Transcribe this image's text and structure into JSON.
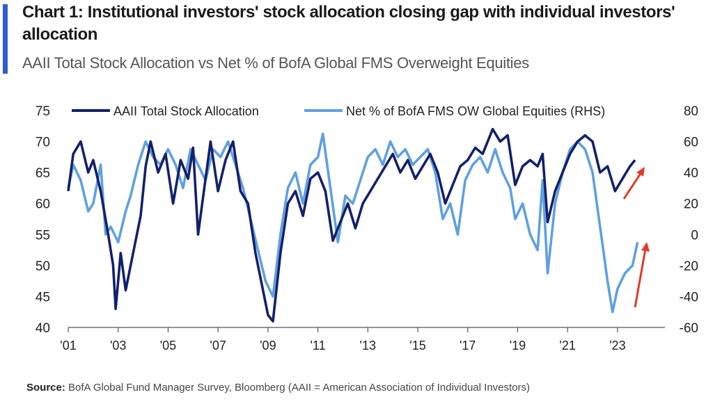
{
  "header": {
    "title": "Chart 1: Institutional investors' stock allocation closing gap with individual investors' allocation",
    "subtitle": "AAII Total Stock Allocation vs Net % of BofA Global FMS Overweight Equities"
  },
  "footer": {
    "source_label": "Source:",
    "source_text": "BofA Global Fund Manager Survey, Bloomberg (AAII = American Association of Individual Investors)"
  },
  "colors": {
    "accent": "#2f5bd6",
    "aaii": "#14206b",
    "fms": "#5fa0e0",
    "arrow": "#e23a2a"
  },
  "chart_data": {
    "type": "line",
    "x_range": [
      2001,
      2024.9
    ],
    "x_tick_labels": [
      "'01",
      "'03",
      "'05",
      "'07",
      "'09",
      "'11",
      "'13",
      "'15",
      "'17",
      "'19",
      "'21",
      "'23"
    ],
    "x_tick_values": [
      2001,
      2003,
      2005,
      2007,
      2009,
      2011,
      2013,
      2015,
      2017,
      2019,
      2021,
      2023
    ],
    "y_left": {
      "range": [
        40,
        75
      ],
      "ticks": [
        40,
        45,
        50,
        55,
        60,
        65,
        70,
        75
      ]
    },
    "y_right": {
      "range": [
        -60,
        80
      ],
      "ticks": [
        -60,
        -40,
        -20,
        0,
        20,
        40,
        60,
        80
      ]
    },
    "legend_position": "top",
    "grid": false,
    "series": [
      {
        "name": "AAII Total Stock Allocation",
        "axis": "left",
        "points": [
          [
            2001.0,
            62
          ],
          [
            2001.2,
            68
          ],
          [
            2001.5,
            70
          ],
          [
            2001.8,
            65
          ],
          [
            2002.0,
            67
          ],
          [
            2002.3,
            62
          ],
          [
            2002.6,
            55
          ],
          [
            2002.8,
            50
          ],
          [
            2002.9,
            43
          ],
          [
            2003.1,
            52
          ],
          [
            2003.3,
            46
          ],
          [
            2003.6,
            52
          ],
          [
            2003.9,
            58
          ],
          [
            2004.1,
            66
          ],
          [
            2004.3,
            70
          ],
          [
            2004.6,
            65
          ],
          [
            2004.9,
            68
          ],
          [
            2005.2,
            60
          ],
          [
            2005.5,
            67
          ],
          [
            2005.8,
            64
          ],
          [
            2006.0,
            69
          ],
          [
            2006.2,
            55
          ],
          [
            2006.5,
            64
          ],
          [
            2006.7,
            70
          ],
          [
            2007.0,
            62
          ],
          [
            2007.3,
            67
          ],
          [
            2007.6,
            70
          ],
          [
            2007.9,
            62
          ],
          [
            2008.2,
            60
          ],
          [
            2008.5,
            52
          ],
          [
            2008.8,
            46
          ],
          [
            2009.0,
            42
          ],
          [
            2009.2,
            41
          ],
          [
            2009.5,
            52
          ],
          [
            2009.8,
            60
          ],
          [
            2010.1,
            62
          ],
          [
            2010.4,
            58
          ],
          [
            2010.7,
            64
          ],
          [
            2011.0,
            65
          ],
          [
            2011.3,
            62
          ],
          [
            2011.6,
            54
          ],
          [
            2011.9,
            57
          ],
          [
            2012.2,
            60
          ],
          [
            2012.5,
            56
          ],
          [
            2012.8,
            60
          ],
          [
            2013.1,
            62
          ],
          [
            2013.4,
            64
          ],
          [
            2013.7,
            66
          ],
          [
            2014.0,
            68
          ],
          [
            2014.3,
            65
          ],
          [
            2014.6,
            67
          ],
          [
            2014.9,
            64
          ],
          [
            2015.2,
            66
          ],
          [
            2015.5,
            68
          ],
          [
            2015.8,
            65
          ],
          [
            2016.1,
            60
          ],
          [
            2016.4,
            63
          ],
          [
            2016.7,
            66
          ],
          [
            2017.0,
            67
          ],
          [
            2017.3,
            69
          ],
          [
            2017.6,
            68
          ],
          [
            2018.0,
            72
          ],
          [
            2018.3,
            70
          ],
          [
            2018.6,
            71
          ],
          [
            2018.9,
            63
          ],
          [
            2019.2,
            66
          ],
          [
            2019.5,
            67
          ],
          [
            2019.8,
            66
          ],
          [
            2020.0,
            68
          ],
          [
            2020.2,
            57
          ],
          [
            2020.5,
            62
          ],
          [
            2020.8,
            65
          ],
          [
            2021.1,
            68
          ],
          [
            2021.4,
            70
          ],
          [
            2021.7,
            71
          ],
          [
            2022.0,
            70
          ],
          [
            2022.3,
            65
          ],
          [
            2022.6,
            66
          ],
          [
            2022.9,
            62
          ],
          [
            2023.2,
            64
          ],
          [
            2023.5,
            66
          ],
          [
            2023.7,
            67
          ]
        ]
      },
      {
        "name": "Net % of BofA FMS OW Global Equities (RHS)",
        "axis": "right",
        "points": [
          [
            2001.0,
            30
          ],
          [
            2001.2,
            45
          ],
          [
            2001.5,
            35
          ],
          [
            2001.8,
            15
          ],
          [
            2002.0,
            20
          ],
          [
            2002.3,
            45
          ],
          [
            2002.5,
            0
          ],
          [
            2002.7,
            5
          ],
          [
            2003.0,
            -5
          ],
          [
            2003.3,
            15
          ],
          [
            2003.5,
            25
          ],
          [
            2003.8,
            45
          ],
          [
            2004.1,
            60
          ],
          [
            2004.4,
            50
          ],
          [
            2004.7,
            45
          ],
          [
            2005.0,
            55
          ],
          [
            2005.3,
            45
          ],
          [
            2005.6,
            30
          ],
          [
            2005.9,
            55
          ],
          [
            2006.2,
            45
          ],
          [
            2006.5,
            35
          ],
          [
            2006.8,
            55
          ],
          [
            2007.1,
            50
          ],
          [
            2007.4,
            60
          ],
          [
            2007.7,
            45
          ],
          [
            2008.0,
            30
          ],
          [
            2008.3,
            10
          ],
          [
            2008.6,
            -10
          ],
          [
            2008.9,
            -30
          ],
          [
            2009.2,
            -40
          ],
          [
            2009.5,
            0
          ],
          [
            2009.8,
            30
          ],
          [
            2010.1,
            40
          ],
          [
            2010.4,
            20
          ],
          [
            2010.7,
            45
          ],
          [
            2011.0,
            50
          ],
          [
            2011.2,
            65
          ],
          [
            2011.5,
            30
          ],
          [
            2011.8,
            -5
          ],
          [
            2012.1,
            25
          ],
          [
            2012.4,
            20
          ],
          [
            2012.7,
            35
          ],
          [
            2013.0,
            50
          ],
          [
            2013.3,
            55
          ],
          [
            2013.6,
            45
          ],
          [
            2013.9,
            60
          ],
          [
            2014.2,
            50
          ],
          [
            2014.5,
            55
          ],
          [
            2014.8,
            45
          ],
          [
            2015.1,
            50
          ],
          [
            2015.4,
            55
          ],
          [
            2015.7,
            40
          ],
          [
            2016.0,
            10
          ],
          [
            2016.3,
            20
          ],
          [
            2016.6,
            0
          ],
          [
            2016.9,
            35
          ],
          [
            2017.2,
            45
          ],
          [
            2017.5,
            50
          ],
          [
            2017.8,
            40
          ],
          [
            2018.1,
            55
          ],
          [
            2018.4,
            40
          ],
          [
            2018.7,
            30
          ],
          [
            2018.9,
            10
          ],
          [
            2019.2,
            20
          ],
          [
            2019.5,
            0
          ],
          [
            2019.8,
            -10
          ],
          [
            2020.0,
            35
          ],
          [
            2020.2,
            -25
          ],
          [
            2020.5,
            20
          ],
          [
            2020.8,
            40
          ],
          [
            2021.1,
            55
          ],
          [
            2021.4,
            60
          ],
          [
            2021.7,
            55
          ],
          [
            2022.0,
            40
          ],
          [
            2022.3,
            5
          ],
          [
            2022.6,
            -30
          ],
          [
            2022.8,
            -50
          ],
          [
            2023.0,
            -35
          ],
          [
            2023.3,
            -25
          ],
          [
            2023.6,
            -20
          ],
          [
            2023.8,
            -5
          ]
        ]
      }
    ]
  }
}
